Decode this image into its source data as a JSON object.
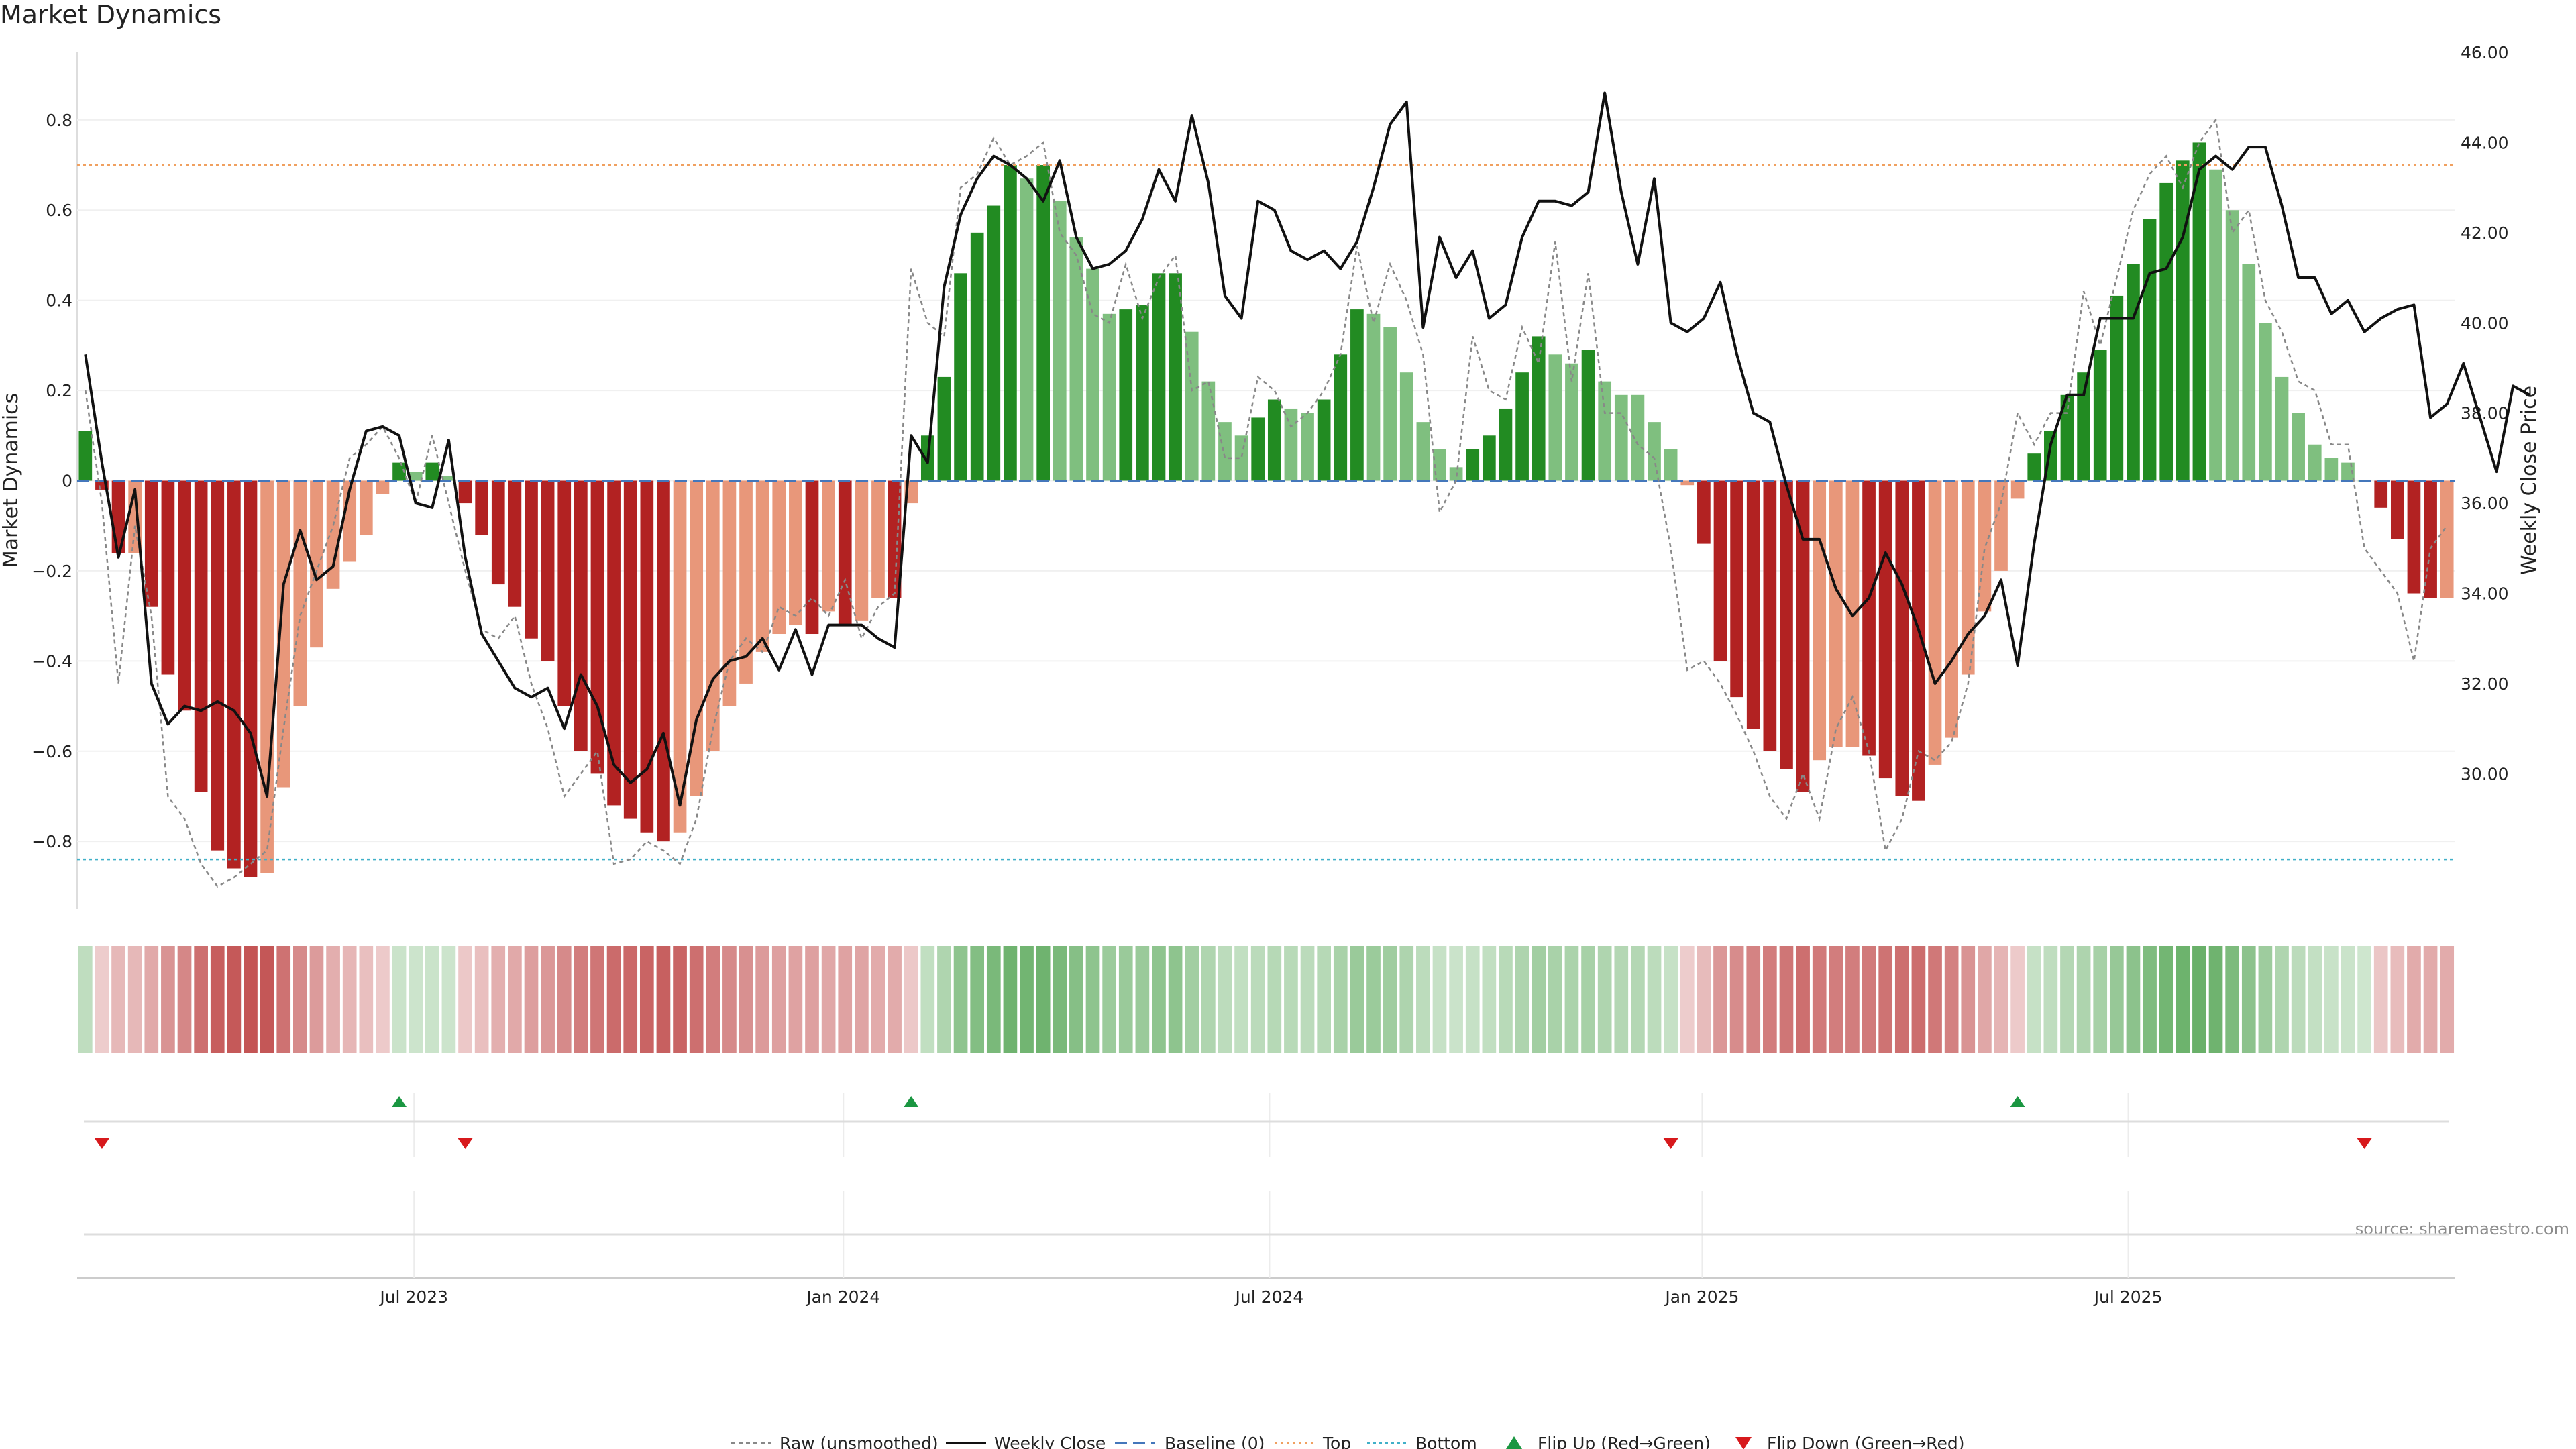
{
  "chart_data": {
    "type": "bar",
    "title": "Market Dynamics",
    "source": "source: sharemaestro.com",
    "ylabel_left": "Market Dynamics",
    "ylabel_right": "Weekly Close Price",
    "ylim_left": [
      -0.95,
      0.95
    ],
    "ylim_right": [
      27.0,
      46.0
    ],
    "yticks_left": [
      "0.8",
      "0.6",
      "0.4",
      "0.2",
      "0",
      "−0.2",
      "−0.4",
      "−0.6",
      "−0.8"
    ],
    "yticks_right": [
      "46.00",
      "44.00",
      "42.00",
      "40.00",
      "38.00",
      "36.00",
      "34.00",
      "32.00",
      "30.00"
    ],
    "xticks": [
      "Jul 2023",
      "Jan 2024",
      "Jul 2024",
      "Jan 2025",
      "Jul 2025"
    ],
    "top_level": 0.7,
    "bottom_level": -0.84,
    "baseline": 0,
    "colors": {
      "strong_up": "#228b22",
      "weak_up": "#7fbf7f",
      "strong_down": "#b22222",
      "weak_down": "#e8977a",
      "close": "#111111",
      "raw": "#888888",
      "baseline": "#4477bb",
      "top": "#f0a060",
      "bottom": "#40b0c8",
      "flip_up": "#1a9641",
      "flip_down": "#d7191c"
    },
    "dynamics": [
      0.11,
      -0.02,
      -0.16,
      -0.16,
      -0.28,
      -0.43,
      -0.51,
      -0.69,
      -0.82,
      -0.86,
      -0.88,
      -0.87,
      -0.68,
      -0.5,
      -0.37,
      -0.24,
      -0.18,
      -0.12,
      -0.03,
      0.04,
      0.02,
      0.04,
      0.01,
      -0.05,
      -0.12,
      -0.23,
      -0.28,
      -0.35,
      -0.4,
      -0.5,
      -0.6,
      -0.65,
      -0.72,
      -0.75,
      -0.78,
      -0.8,
      -0.78,
      -0.7,
      -0.6,
      -0.5,
      -0.45,
      -0.38,
      -0.34,
      -0.32,
      -0.34,
      -0.29,
      -0.32,
      -0.31,
      -0.26,
      -0.26,
      -0.05,
      0.1,
      0.23,
      0.46,
      0.55,
      0.61,
      0.7,
      0.67,
      0.7,
      0.62,
      0.54,
      0.47,
      0.37,
      0.38,
      0.39,
      0.46,
      0.46,
      0.33,
      0.22,
      0.13,
      0.1,
      0.14,
      0.18,
      0.16,
      0.15,
      0.18,
      0.28,
      0.38,
      0.37,
      0.34,
      0.24,
      0.13,
      0.07,
      0.03,
      0.07,
      0.1,
      0.16,
      0.24,
      0.32,
      0.28,
      0.26,
      0.29,
      0.22,
      0.19,
      0.19,
      0.13,
      0.07,
      -0.01,
      -0.14,
      -0.4,
      -0.48,
      -0.55,
      -0.6,
      -0.64,
      -0.69,
      -0.62,
      -0.59,
      -0.59,
      -0.61,
      -0.66,
      -0.7,
      -0.71,
      -0.63,
      -0.57,
      -0.43,
      -0.29,
      -0.2,
      -0.04,
      0.06,
      0.11,
      0.19,
      0.24,
      0.29,
      0.41,
      0.48,
      0.58,
      0.66,
      0.71,
      0.75,
      0.69,
      0.6,
      0.48,
      0.35,
      0.23,
      0.15,
      0.08,
      0.05,
      0.04,
      0.0,
      -0.06,
      -0.13,
      -0.25,
      -0.26,
      -0.26
    ],
    "strength": [
      "s",
      "s",
      "s",
      "w",
      "s",
      "s",
      "s",
      "s",
      "s",
      "s",
      "s",
      "w",
      "w",
      "w",
      "w",
      "w",
      "w",
      "w",
      "w",
      "s",
      "w",
      "s",
      "w",
      "s",
      "s",
      "s",
      "s",
      "s",
      "s",
      "s",
      "s",
      "s",
      "s",
      "s",
      "s",
      "s",
      "w",
      "w",
      "w",
      "w",
      "w",
      "w",
      "w",
      "w",
      "s",
      "w",
      "s",
      "w",
      "w",
      "s",
      "w",
      "s",
      "s",
      "s",
      "s",
      "s",
      "s",
      "w",
      "s",
      "w",
      "w",
      "w",
      "w",
      "s",
      "s",
      "s",
      "s",
      "w",
      "w",
      "w",
      "w",
      "s",
      "s",
      "w",
      "w",
      "s",
      "s",
      "s",
      "w",
      "w",
      "w",
      "w",
      "w",
      "w",
      "s",
      "s",
      "s",
      "s",
      "s",
      "w",
      "w",
      "s",
      "w",
      "w",
      "w",
      "w",
      "w",
      "w",
      "s",
      "s",
      "s",
      "s",
      "s",
      "s",
      "s",
      "w",
      "w",
      "w",
      "s",
      "s",
      "s",
      "s",
      "w",
      "w",
      "w",
      "w",
      "w",
      "w",
      "s",
      "s",
      "s",
      "s",
      "s",
      "s",
      "s",
      "s",
      "s",
      "s",
      "s",
      "w",
      "w",
      "w",
      "w",
      "w",
      "w",
      "w",
      "w",
      "w",
      "w",
      "s",
      "s",
      "s",
      "s",
      "w"
    ],
    "raw": [
      0.2,
      -0.05,
      -0.45,
      -0.1,
      -0.3,
      -0.7,
      -0.75,
      -0.85,
      -0.9,
      -0.88,
      -0.85,
      -0.82,
      -0.55,
      -0.3,
      -0.2,
      -0.1,
      0.05,
      0.08,
      0.12,
      0.05,
      -0.05,
      0.1,
      -0.05,
      -0.2,
      -0.33,
      -0.35,
      -0.3,
      -0.45,
      -0.55,
      -0.7,
      -0.65,
      -0.6,
      -0.85,
      -0.84,
      -0.8,
      -0.82,
      -0.85,
      -0.75,
      -0.55,
      -0.4,
      -0.35,
      -0.38,
      -0.28,
      -0.3,
      -0.26,
      -0.3,
      -0.22,
      -0.35,
      -0.28,
      -0.25,
      0.47,
      0.35,
      0.32,
      0.65,
      0.68,
      0.76,
      0.7,
      0.72,
      0.75,
      0.55,
      0.5,
      0.37,
      0.35,
      0.48,
      0.36,
      0.45,
      0.5,
      0.2,
      0.22,
      0.05,
      0.05,
      0.23,
      0.2,
      0.12,
      0.15,
      0.2,
      0.28,
      0.52,
      0.35,
      0.48,
      0.4,
      0.28,
      -0.07,
      0.0,
      0.32,
      0.2,
      0.18,
      0.34,
      0.26,
      0.53,
      0.22,
      0.46,
      0.15,
      0.15,
      0.08,
      0.05,
      -0.15,
      -0.42,
      -0.4,
      -0.45,
      -0.52,
      -0.6,
      -0.7,
      -0.75,
      -0.65,
      -0.75,
      -0.55,
      -0.48,
      -0.6,
      -0.82,
      -0.75,
      -0.6,
      -0.62,
      -0.58,
      -0.45,
      -0.15,
      -0.05,
      0.15,
      0.08,
      0.15,
      0.15,
      0.42,
      0.3,
      0.45,
      0.6,
      0.68,
      0.72,
      0.65,
      0.75,
      0.8,
      0.55,
      0.6,
      0.4,
      0.33,
      0.22,
      0.2,
      0.08,
      0.08,
      -0.15,
      -0.2,
      -0.25,
      -0.4,
      -0.15,
      -0.1
    ],
    "close": [
      39.3,
      36.9,
      34.8,
      36.3,
      32.0,
      31.1,
      31.5,
      31.4,
      31.6,
      31.4,
      30.9,
      29.5,
      34.2,
      35.4,
      34.3,
      34.6,
      36.3,
      37.6,
      37.7,
      37.5,
      36.0,
      35.9,
      37.4,
      34.8,
      33.1,
      32.5,
      31.9,
      31.7,
      31.9,
      31.0,
      32.2,
      31.5,
      30.2,
      29.8,
      30.1,
      30.9,
      29.3,
      31.2,
      32.1,
      32.5,
      32.6,
      33.0,
      32.3,
      33.2,
      32.2,
      33.3,
      33.3,
      33.3,
      33.0,
      32.8,
      37.5,
      36.9,
      40.8,
      42.4,
      43.2,
      43.7,
      43.5,
      43.2,
      42.7,
      43.6,
      41.9,
      41.2,
      41.3,
      41.6,
      42.3,
      43.4,
      42.7,
      44.6,
      43.1,
      40.6,
      40.1,
      42.7,
      42.5,
      41.6,
      41.4,
      41.6,
      41.2,
      41.8,
      43.0,
      44.4,
      44.9,
      39.9,
      41.9,
      41.0,
      41.6,
      40.1,
      40.4,
      41.9,
      42.7,
      42.7,
      42.6,
      42.9,
      45.1,
      42.9,
      41.3,
      43.2,
      40.0,
      39.8,
      40.1,
      40.9,
      39.3,
      38.0,
      37.8,
      36.4,
      35.2,
      35.2,
      34.1,
      33.5,
      33.9,
      34.9,
      34.2,
      33.2,
      32.0,
      32.5,
      33.1,
      33.5,
      34.3,
      32.4,
      35.1,
      37.3,
      38.4,
      38.4,
      40.1,
      40.1,
      40.1,
      41.1,
      41.2,
      41.9,
      43.4,
      43.7,
      43.4,
      43.9,
      43.9,
      42.6,
      41.0,
      41.0,
      40.2,
      40.5,
      39.8,
      40.1,
      40.3,
      40.4,
      37.9,
      38.2,
      39.1,
      37.9,
      36.7,
      38.6,
      38.4
    ],
    "flip_up_indices": [
      19,
      50,
      117
    ],
    "flip_down_indices": [
      1,
      23,
      96,
      138
    ],
    "legend": [
      {
        "label": "Raw (unsmoothed)",
        "style": "raw"
      },
      {
        "label": "Weekly Close",
        "style": "close"
      },
      {
        "label": "Baseline (0)",
        "style": "baseline"
      },
      {
        "label": "Top",
        "style": "top"
      },
      {
        "label": "Bottom",
        "style": "bottom"
      },
      {
        "label": "Flip Up (Red→Green)",
        "style": "flip_up"
      },
      {
        "label": "Flip Down (Green→Red)",
        "style": "flip_down"
      }
    ]
  }
}
